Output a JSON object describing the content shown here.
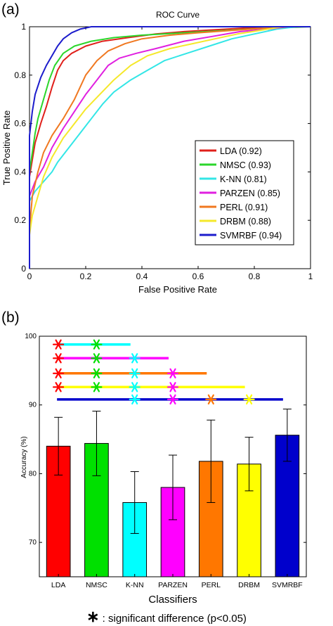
{
  "chart_data": [
    {
      "panel_label": "(a)",
      "type": "line",
      "title": "ROC Curve",
      "xlabel": "False Positive Rate",
      "ylabel": "True Positive Rate",
      "xlim": [
        0,
        1
      ],
      "ylim": [
        0,
        1
      ],
      "x_ticks": [
        "0",
        "0.2",
        "0.4",
        "0.6",
        "0.8",
        "1"
      ],
      "y_ticks": [
        "0",
        "0.2",
        "0.4",
        "0.6",
        "0.8",
        "1"
      ],
      "grid": false,
      "legend_position": "lower-right",
      "series": [
        {
          "name": "LDA (0.92)",
          "color": "#e0201b",
          "points": [
            [
              0,
              0
            ],
            [
              0,
              0.38
            ],
            [
              0.01,
              0.45
            ],
            [
              0.02,
              0.52
            ],
            [
              0.04,
              0.6
            ],
            [
              0.06,
              0.67
            ],
            [
              0.08,
              0.75
            ],
            [
              0.1,
              0.82
            ],
            [
              0.12,
              0.86
            ],
            [
              0.15,
              0.89
            ],
            [
              0.2,
              0.92
            ],
            [
              0.26,
              0.94
            ],
            [
              0.35,
              0.955
            ],
            [
              0.45,
              0.97
            ],
            [
              0.55,
              0.98
            ],
            [
              0.7,
              0.99
            ],
            [
              0.85,
              1.0
            ],
            [
              1,
              1
            ]
          ]
        },
        {
          "name": "NMSC (0.93)",
          "color": "#2bd62b",
          "points": [
            [
              0,
              0
            ],
            [
              0,
              0.4
            ],
            [
              0.01,
              0.48
            ],
            [
              0.02,
              0.56
            ],
            [
              0.03,
              0.62
            ],
            [
              0.05,
              0.7
            ],
            [
              0.07,
              0.78
            ],
            [
              0.09,
              0.84
            ],
            [
              0.12,
              0.89
            ],
            [
              0.16,
              0.92
            ],
            [
              0.22,
              0.94
            ],
            [
              0.3,
              0.955
            ],
            [
              0.4,
              0.965
            ],
            [
              0.55,
              0.975
            ],
            [
              0.7,
              0.985
            ],
            [
              0.85,
              0.995
            ],
            [
              1,
              1
            ]
          ]
        },
        {
          "name": "K-NN (0.81)",
          "color": "#33e6e6",
          "points": [
            [
              0,
              0
            ],
            [
              0,
              0.28
            ],
            [
              0.02,
              0.32
            ],
            [
              0.05,
              0.36
            ],
            [
              0.08,
              0.4
            ],
            [
              0.1,
              0.44
            ],
            [
              0.14,
              0.5
            ],
            [
              0.18,
              0.56
            ],
            [
              0.22,
              0.62
            ],
            [
              0.26,
              0.68
            ],
            [
              0.3,
              0.73
            ],
            [
              0.36,
              0.78
            ],
            [
              0.42,
              0.82
            ],
            [
              0.48,
              0.86
            ],
            [
              0.56,
              0.89
            ],
            [
              0.64,
              0.92
            ],
            [
              0.72,
              0.95
            ],
            [
              0.8,
              0.97
            ],
            [
              0.88,
              0.99
            ],
            [
              0.95,
              1.0
            ],
            [
              1,
              1
            ]
          ]
        },
        {
          "name": "PARZEN (0.85)",
          "color": "#e020e0",
          "points": [
            [
              0,
              0
            ],
            [
              0,
              0.3
            ],
            [
              0.02,
              0.36
            ],
            [
              0.05,
              0.42
            ],
            [
              0.08,
              0.5
            ],
            [
              0.12,
              0.58
            ],
            [
              0.16,
              0.65
            ],
            [
              0.2,
              0.72
            ],
            [
              0.24,
              0.78
            ],
            [
              0.28,
              0.84
            ],
            [
              0.32,
              0.87
            ],
            [
              0.38,
              0.89
            ],
            [
              0.45,
              0.91
            ],
            [
              0.55,
              0.94
            ],
            [
              0.65,
              0.96
            ],
            [
              0.75,
              0.98
            ],
            [
              0.85,
              0.99
            ],
            [
              0.92,
              1.0
            ],
            [
              1,
              1
            ]
          ]
        },
        {
          "name": "PERL (0.91)",
          "color": "#f07820",
          "points": [
            [
              0,
              0
            ],
            [
              0,
              0.16
            ],
            [
              0.01,
              0.3
            ],
            [
              0.03,
              0.4
            ],
            [
              0.05,
              0.48
            ],
            [
              0.08,
              0.55
            ],
            [
              0.12,
              0.62
            ],
            [
              0.16,
              0.7
            ],
            [
              0.2,
              0.8
            ],
            [
              0.24,
              0.86
            ],
            [
              0.28,
              0.9
            ],
            [
              0.34,
              0.93
            ],
            [
              0.4,
              0.95
            ],
            [
              0.5,
              0.965
            ],
            [
              0.6,
              0.975
            ],
            [
              0.72,
              0.985
            ],
            [
              0.85,
              0.995
            ],
            [
              0.92,
              1.0
            ],
            [
              1,
              1
            ]
          ]
        },
        {
          "name": "DRBM (0.88)",
          "color": "#f5e82a",
          "points": [
            [
              0,
              0
            ],
            [
              0,
              0.14
            ],
            [
              0.01,
              0.22
            ],
            [
              0.03,
              0.3
            ],
            [
              0.05,
              0.38
            ],
            [
              0.08,
              0.46
            ],
            [
              0.12,
              0.54
            ],
            [
              0.16,
              0.6
            ],
            [
              0.2,
              0.66
            ],
            [
              0.25,
              0.72
            ],
            [
              0.3,
              0.78
            ],
            [
              0.36,
              0.84
            ],
            [
              0.42,
              0.88
            ],
            [
              0.5,
              0.91
            ],
            [
              0.58,
              0.93
            ],
            [
              0.66,
              0.95
            ],
            [
              0.74,
              0.97
            ],
            [
              0.82,
              0.985
            ],
            [
              0.9,
              1.0
            ],
            [
              1,
              1
            ]
          ]
        },
        {
          "name": "SVMRBF (0.94)",
          "color": "#1c1ccc",
          "points": [
            [
              0,
              0
            ],
            [
              0,
              0.55
            ],
            [
              0.01,
              0.65
            ],
            [
              0.02,
              0.72
            ],
            [
              0.04,
              0.79
            ],
            [
              0.06,
              0.84
            ],
            [
              0.08,
              0.88
            ],
            [
              0.1,
              0.92
            ],
            [
              0.12,
              0.95
            ],
            [
              0.15,
              0.975
            ],
            [
              0.18,
              0.99
            ],
            [
              0.22,
              1.0
            ],
            [
              1,
              1
            ]
          ]
        }
      ]
    },
    {
      "panel_label": "(b)",
      "type": "bar",
      "xlabel": "Classifiers",
      "ylabel": "Accuracy (%)",
      "ylim": [
        65,
        100
      ],
      "y_ticks": [
        "70",
        "80",
        "90",
        "100"
      ],
      "categories": [
        "LDA",
        "NMSC",
        "K-NN",
        "PARZEN",
        "PERL",
        "DRBM",
        "SVMRBF"
      ],
      "values": [
        84.0,
        84.4,
        75.8,
        78.0,
        81.8,
        81.4,
        85.6
      ],
      "errors": [
        4.2,
        4.7,
        4.5,
        4.7,
        6.0,
        3.9,
        3.8
      ],
      "colors": [
        "#ff0000",
        "#00e000",
        "#00ffff",
        "#ff00ff",
        "#ff7700",
        "#ffff00",
        "#0000cc"
      ],
      "significance_lines": [
        {
          "color": "#00ffff",
          "y": 98.8,
          "from": 0,
          "to": 2,
          "stars": [
            0,
            1
          ]
        },
        {
          "color": "#ff00ff",
          "y": 96.8,
          "from": 0,
          "to": 3,
          "stars": [
            0,
            1,
            2
          ]
        },
        {
          "color": "#ff7700",
          "y": 94.6,
          "from": 0,
          "to": 4,
          "stars": [
            0,
            1,
            2,
            3
          ]
        },
        {
          "color": "#ffff00",
          "y": 92.6,
          "from": 0,
          "to": 5,
          "stars": [
            0,
            1,
            2,
            3
          ]
        },
        {
          "color": "#0000cc",
          "y": 90.8,
          "from": 0,
          "to": 6,
          "stars": [
            2,
            3,
            4,
            5
          ]
        }
      ],
      "footnote_symbol": "∗",
      "footnote": " : significant difference (p<0.05)"
    }
  ]
}
